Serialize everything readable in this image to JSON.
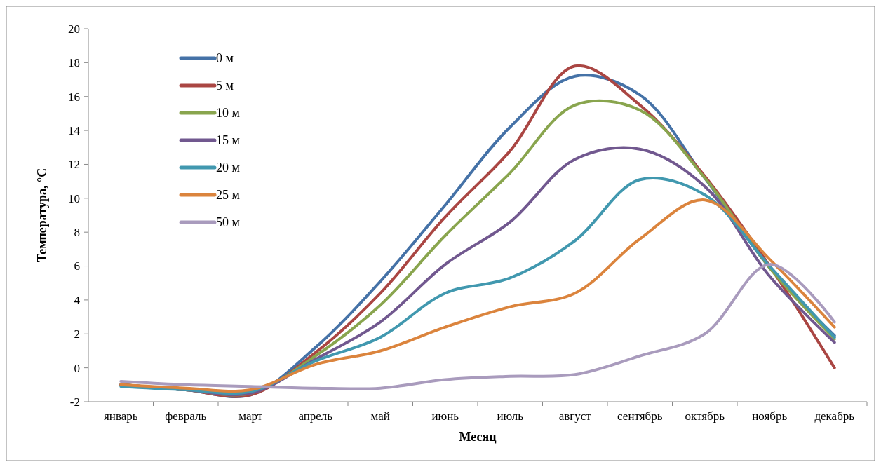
{
  "chart_data": {
    "type": "line",
    "xlabel": "Месяц",
    "ylabel": "Температура, °С",
    "categories": [
      "январь",
      "февраль",
      "март",
      "апрель",
      "май",
      "июнь",
      "июль",
      "август",
      "сентябрь",
      "октябрь",
      "ноябрь",
      "декабрь"
    ],
    "ylim": [
      -2,
      20
    ],
    "yticks": [
      -2,
      0,
      2,
      4,
      6,
      8,
      10,
      12,
      14,
      16,
      18,
      20
    ],
    "grid": false,
    "legend": "top left",
    "marker": "none",
    "line_style": "solid",
    "series": [
      {
        "name": "0 м",
        "color": "#4572a7",
        "values": [
          -1.0,
          -1.3,
          -1.6,
          1.2,
          5.1,
          9.6,
          14.2,
          17.2,
          16.1,
          11.2,
          5.9,
          1.9
        ]
      },
      {
        "name": "5 м",
        "color": "#aa4643",
        "values": [
          -1.0,
          -1.3,
          -1.6,
          0.9,
          4.4,
          8.9,
          12.8,
          17.8,
          15.5,
          11.3,
          6.0,
          0.0
        ]
      },
      {
        "name": "10 м",
        "color": "#89a54e",
        "values": [
          -1.0,
          -1.3,
          -1.5,
          0.7,
          3.7,
          7.8,
          11.5,
          15.5,
          15.2,
          11.2,
          5.9,
          1.7
        ]
      },
      {
        "name": "15 м",
        "color": "#71588f",
        "values": [
          -1.0,
          -1.3,
          -1.5,
          0.5,
          2.7,
          6.1,
          8.6,
          12.3,
          12.9,
          10.7,
          5.4,
          1.5
        ]
      },
      {
        "name": "20 м",
        "color": "#4198af",
        "values": [
          -1.1,
          -1.3,
          -1.4,
          0.4,
          1.8,
          4.4,
          5.3,
          7.5,
          11.1,
          10.2,
          6.0,
          1.8
        ]
      },
      {
        "name": "25 м",
        "color": "#db843d",
        "values": [
          -1.0,
          -1.2,
          -1.3,
          0.2,
          1.0,
          2.4,
          3.6,
          4.4,
          7.6,
          9.9,
          6.4,
          2.4
        ]
      },
      {
        "name": "50 м",
        "color": "#a99bbd",
        "values": [
          -0.8,
          -1.0,
          -1.1,
          -1.2,
          -1.2,
          -0.7,
          -0.5,
          -0.4,
          0.7,
          2.0,
          6.1,
          2.7
        ]
      }
    ]
  }
}
